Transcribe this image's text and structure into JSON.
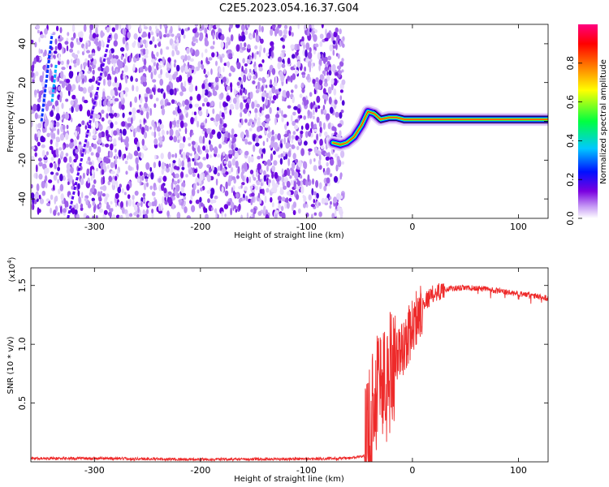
{
  "figure": {
    "title": "C2E5.2023.054.16.37.G04"
  },
  "chart_data": [
    {
      "type": "heatmap",
      "xlabel": "Height of straight line (km)",
      "ylabel": "Frequency (Hz)",
      "xlim": [
        -360,
        128
      ],
      "ylim": [
        -50,
        50
      ],
      "xticks": [
        -300,
        -200,
        -100,
        0,
        100
      ],
      "yticks": [
        -40,
        -20,
        0,
        20,
        40
      ],
      "noise_region_x": [
        -360,
        -65
      ],
      "trace": {
        "description_points_x": [
          -75,
          -68,
          -62,
          -55,
          -48,
          -42,
          -36,
          -30,
          -22,
          -15,
          -8,
          0,
          20,
          40,
          60,
          80,
          100,
          115,
          128
        ],
        "description_points_y": [
          -11,
          -12,
          -11,
          -8,
          -2,
          5,
          4,
          1,
          2,
          2,
          1,
          1,
          1,
          1,
          1,
          1,
          1,
          1,
          1
        ]
      },
      "colorbar": {
        "label": "Normalized spectral amplitude",
        "range": [
          0.0,
          1.0
        ],
        "ticks": [
          0.0,
          0.2,
          0.4,
          0.6,
          0.8
        ],
        "colormap": [
          "#ffffff",
          "#7a00e0",
          "#0010ff",
          "#00c8ff",
          "#00ff40",
          "#ffff00",
          "#ff8000",
          "#ff0000",
          "#ff0080"
        ]
      }
    },
    {
      "type": "line",
      "xlabel": "Height of straight line (km)",
      "ylabel": "SNR (10 * v/v)",
      "yscale_label": "(x10",
      "yscale_exp": "4",
      "yscale_close": ")",
      "xlim": [
        -360,
        128
      ],
      "ylim": [
        0,
        16500
      ],
      "xticks": [
        -300,
        -200,
        -100,
        0,
        100
      ],
      "yticks": [
        5000,
        10000,
        15000
      ],
      "ytick_labels": [
        "0.5",
        "1.0",
        "1.5"
      ],
      "series": [
        {
          "color": "#ee2a2a",
          "x": [
            -360,
            -300,
            -200,
            -100,
            -60,
            -45,
            -40,
            -35,
            -30,
            -25,
            -20,
            -15,
            -10,
            -5,
            0,
            10,
            20,
            30,
            50,
            70,
            90,
            110,
            128
          ],
          "y": [
            300,
            300,
            200,
            250,
            300,
            500,
            3500,
            6000,
            7500,
            6000,
            8500,
            9000,
            9500,
            10500,
            11500,
            13500,
            14300,
            14700,
            14800,
            14700,
            14400,
            14200,
            13900
          ]
        }
      ]
    }
  ]
}
